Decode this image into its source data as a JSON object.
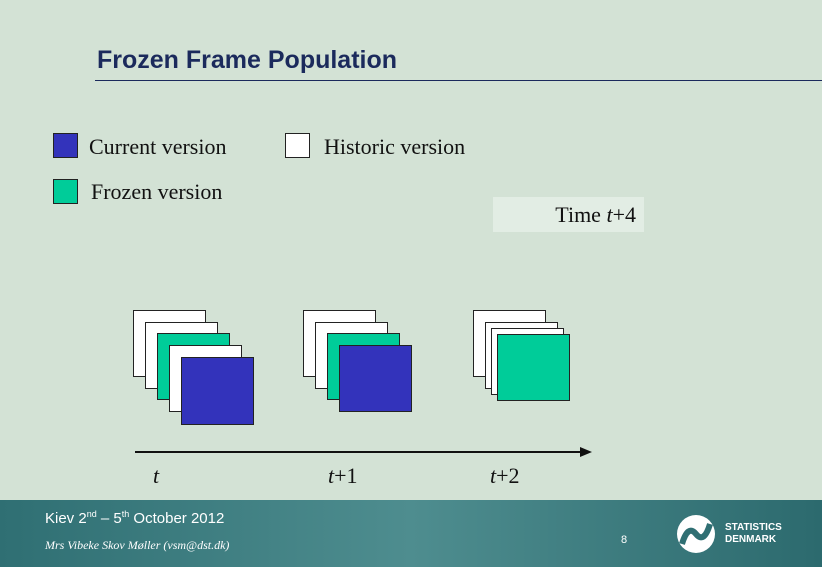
{
  "slide": {
    "title": "Frozen Frame Population",
    "legend": [
      "Current version",
      "Historic version",
      "Frozen version"
    ],
    "time_box": [
      "Time ",
      "t",
      "+4"
    ],
    "timeline": [
      [
        "t",
        ""
      ],
      [
        "t",
        "+1"
      ],
      [
        "t",
        "+2"
      ]
    ],
    "footer": {
      "event": [
        "Kiev 2",
        "nd",
        " – 5",
        "th",
        " October 2012"
      ],
      "author": "Mrs Vibeke Skov Møller (vsm@dst.dk)",
      "page": "8",
      "logo": [
        "STATISTICS",
        "DENMARK"
      ]
    }
  }
}
